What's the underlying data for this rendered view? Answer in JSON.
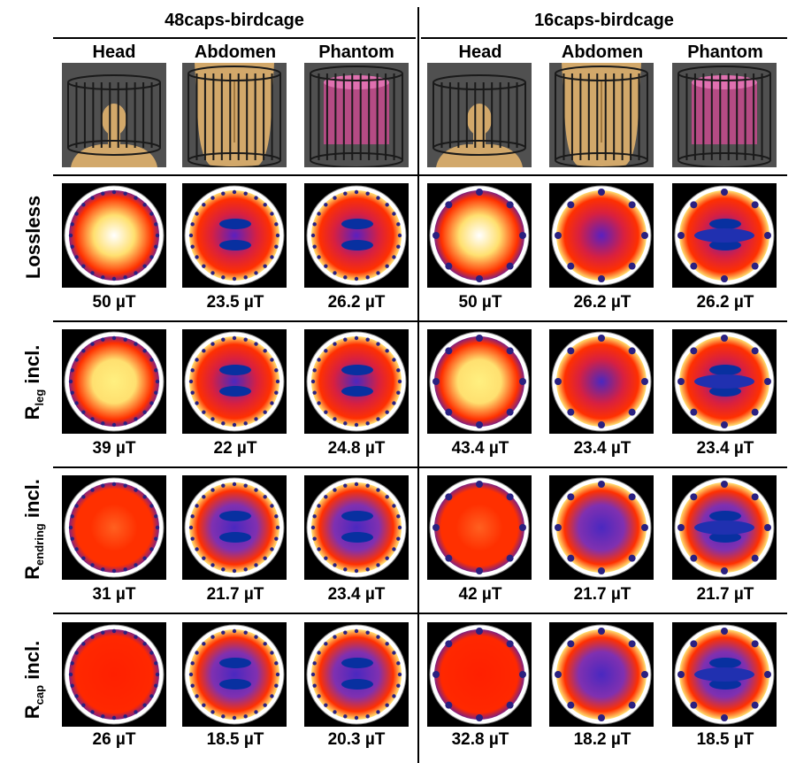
{
  "groups": [
    {
      "title": "48caps-birdcage",
      "columns": [
        "Head",
        "Abdomen",
        "Phantom"
      ]
    },
    {
      "title": "16caps-birdcage",
      "columns": [
        "Head",
        "Abdomen",
        "Phantom"
      ]
    }
  ],
  "rows": [
    {
      "label": "Lossless",
      "sub": "",
      "suffix": "",
      "values": [
        "50 µT",
        "23.5 µT",
        "26.2 µT",
        "50 µT",
        "26.2 µT",
        "26.2 µT"
      ]
    },
    {
      "label": "R",
      "sub": "leg",
      "suffix": " incl.",
      "values": [
        "39 µT",
        "22 µT",
        "24.8 µT",
        "43.4 µT",
        "23.4 µT",
        "23.4 µT"
      ]
    },
    {
      "label": "R",
      "sub": "endring",
      "suffix": " incl.",
      "values": [
        "31 µT",
        "21.7 µT",
        "23.4 µT",
        "42 µT",
        "21.7 µT",
        "21.7 µT"
      ]
    },
    {
      "label": "R",
      "sub": "cap",
      "suffix": " incl.",
      "values": [
        "26 µT",
        "18.5 µT",
        "20.3 µT",
        "32.8 µT",
        "18.2 µT",
        "18.5 µT"
      ]
    }
  ],
  "colors": {
    "background": "#ffffff",
    "thumb_bg": "#505050",
    "field_high": "#ffffc0",
    "field_mid": "#ff3000",
    "field_low": "#7020c0",
    "field_min": "#1030a0"
  }
}
